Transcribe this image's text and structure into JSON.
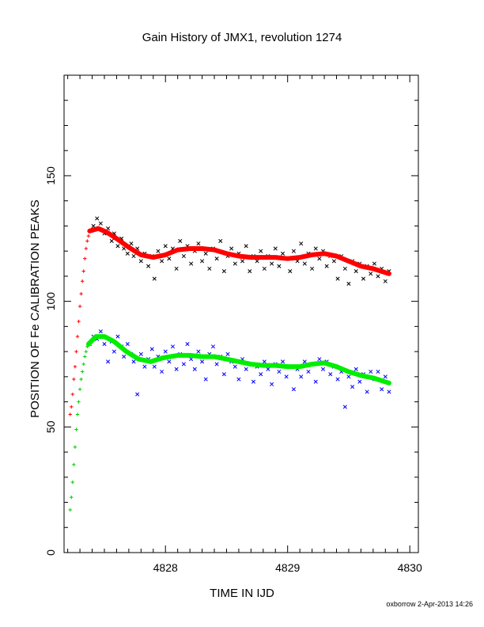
{
  "footer": "oxborrow  2-Apr-2013 14:26",
  "chart_data": {
    "type": "scatter",
    "title": "Gain History of JMX1, revolution 1274",
    "xlabel": "TIME IN IJD",
    "ylabel": "POSITION OF Fe CALIBRATION PEAKS",
    "xlim": [
      4827.17,
      4830.07
    ],
    "ylim": [
      0,
      190
    ],
    "x_ticks": [
      4828,
      4829,
      4830
    ],
    "x_tick_labels": [
      "4828",
      "4829",
      "4830"
    ],
    "y_ticks": [
      0,
      50,
      100,
      150
    ],
    "y_tick_labels": [
      "0",
      "50",
      "100",
      "150"
    ],
    "grid": false,
    "series": [
      {
        "style": "scatter-x",
        "color": "#000000",
        "points": [
          [
            4827.41,
            130
          ],
          [
            4827.44,
            133
          ],
          [
            4827.47,
            131
          ],
          [
            4827.5,
            127
          ],
          [
            4827.53,
            129
          ],
          [
            4827.56,
            124
          ],
          [
            4827.58,
            127
          ],
          [
            4827.61,
            122
          ],
          [
            4827.64,
            125
          ],
          [
            4827.66,
            121
          ],
          [
            4827.69,
            119
          ],
          [
            4827.72,
            123
          ],
          [
            4827.74,
            118
          ],
          [
            4827.77,
            121
          ],
          [
            4827.8,
            116
          ],
          [
            4827.83,
            119
          ],
          [
            4827.86,
            114
          ],
          [
            4827.89,
            118
          ],
          [
            4827.91,
            109
          ],
          [
            4827.94,
            120
          ],
          [
            4827.97,
            116
          ],
          [
            4828.0,
            122
          ],
          [
            4828.03,
            117
          ],
          [
            4828.06,
            121
          ],
          [
            4828.09,
            113
          ],
          [
            4828.12,
            124
          ],
          [
            4828.15,
            118
          ],
          [
            4828.18,
            122
          ],
          [
            4828.21,
            115
          ],
          [
            4828.24,
            120
          ],
          [
            4828.27,
            123
          ],
          [
            4828.3,
            116
          ],
          [
            4828.33,
            119
          ],
          [
            4828.36,
            113
          ],
          [
            4828.39,
            121
          ],
          [
            4828.42,
            117
          ],
          [
            4828.45,
            124
          ],
          [
            4828.48,
            112
          ],
          [
            4828.51,
            118
          ],
          [
            4828.54,
            121
          ],
          [
            4828.57,
            115
          ],
          [
            4828.6,
            119
          ],
          [
            4828.63,
            116
          ],
          [
            4828.66,
            122
          ],
          [
            4828.69,
            112
          ],
          [
            4828.72,
            118
          ],
          [
            4828.75,
            116
          ],
          [
            4828.78,
            120
          ],
          [
            4828.81,
            113
          ],
          [
            4828.84,
            118
          ],
          [
            4828.87,
            115
          ],
          [
            4828.9,
            121
          ],
          [
            4828.93,
            114
          ],
          [
            4828.96,
            119
          ],
          [
            4828.99,
            117
          ],
          [
            4829.02,
            112
          ],
          [
            4829.05,
            120
          ],
          [
            4829.08,
            116
          ],
          [
            4829.11,
            123
          ],
          [
            4829.14,
            115
          ],
          [
            4829.17,
            119
          ],
          [
            4829.2,
            113
          ],
          [
            4829.23,
            121
          ],
          [
            4829.26,
            117
          ],
          [
            4829.29,
            120
          ],
          [
            4829.32,
            114
          ],
          [
            4829.35,
            118
          ],
          [
            4829.38,
            116
          ],
          [
            4829.41,
            109
          ],
          [
            4829.44,
            118
          ],
          [
            4829.47,
            113
          ],
          [
            4829.5,
            107
          ],
          [
            4829.53,
            116
          ],
          [
            4829.56,
            112
          ],
          [
            4829.59,
            115
          ],
          [
            4829.62,
            109
          ],
          [
            4829.65,
            114
          ],
          [
            4829.68,
            111
          ],
          [
            4829.71,
            115
          ],
          [
            4829.74,
            110
          ],
          [
            4829.77,
            113
          ],
          [
            4829.8,
            108
          ],
          [
            4829.83,
            112
          ]
        ]
      },
      {
        "style": "scatter-x",
        "color": "#0000ff",
        "points": [
          [
            4827.38,
            83
          ],
          [
            4827.41,
            86
          ],
          [
            4827.44,
            85
          ],
          [
            4827.47,
            88
          ],
          [
            4827.5,
            83
          ],
          [
            4827.53,
            76
          ],
          [
            4827.56,
            84
          ],
          [
            4827.58,
            80
          ],
          [
            4827.61,
            86
          ],
          [
            4827.64,
            82
          ],
          [
            4827.66,
            78
          ],
          [
            4827.69,
            83
          ],
          [
            4827.72,
            79
          ],
          [
            4827.74,
            76
          ],
          [
            4827.77,
            63
          ],
          [
            4827.8,
            79
          ],
          [
            4827.83,
            74
          ],
          [
            4827.86,
            77
          ],
          [
            4827.89,
            81
          ],
          [
            4827.91,
            74
          ],
          [
            4827.94,
            78
          ],
          [
            4827.97,
            72
          ],
          [
            4828.0,
            80
          ],
          [
            4828.03,
            76
          ],
          [
            4828.06,
            82
          ],
          [
            4828.09,
            73
          ],
          [
            4828.12,
            79
          ],
          [
            4828.15,
            75
          ],
          [
            4828.18,
            83
          ],
          [
            4828.21,
            77
          ],
          [
            4828.24,
            73
          ],
          [
            4828.27,
            80
          ],
          [
            4828.3,
            76
          ],
          [
            4828.33,
            69
          ],
          [
            4828.36,
            79
          ],
          [
            4828.39,
            82
          ],
          [
            4828.42,
            75
          ],
          [
            4828.45,
            78
          ],
          [
            4828.48,
            71
          ],
          [
            4828.51,
            79
          ],
          [
            4828.54,
            76
          ],
          [
            4828.57,
            74
          ],
          [
            4828.6,
            69
          ],
          [
            4828.63,
            77
          ],
          [
            4828.66,
            73
          ],
          [
            4828.69,
            75
          ],
          [
            4828.72,
            68
          ],
          [
            4828.75,
            74
          ],
          [
            4828.78,
            71
          ],
          [
            4828.81,
            76
          ],
          [
            4828.84,
            73
          ],
          [
            4828.87,
            67
          ],
          [
            4828.9,
            75
          ],
          [
            4828.93,
            72
          ],
          [
            4828.96,
            76
          ],
          [
            4828.99,
            70
          ],
          [
            4829.02,
            74
          ],
          [
            4829.05,
            65
          ],
          [
            4829.08,
            73
          ],
          [
            4829.11,
            70
          ],
          [
            4829.14,
            76
          ],
          [
            4829.17,
            72
          ],
          [
            4829.2,
            75
          ],
          [
            4829.23,
            68
          ],
          [
            4829.26,
            77
          ],
          [
            4829.29,
            73
          ],
          [
            4829.32,
            76
          ],
          [
            4829.35,
            71
          ],
          [
            4829.38,
            74
          ],
          [
            4829.41,
            69
          ],
          [
            4829.44,
            72
          ],
          [
            4829.47,
            58
          ],
          [
            4829.5,
            70
          ],
          [
            4829.53,
            66
          ],
          [
            4829.56,
            73
          ],
          [
            4829.59,
            68
          ],
          [
            4829.62,
            71
          ],
          [
            4829.65,
            64
          ],
          [
            4829.68,
            72
          ],
          [
            4829.71,
            69
          ],
          [
            4829.74,
            72
          ],
          [
            4829.77,
            65
          ],
          [
            4829.8,
            70
          ],
          [
            4829.83,
            64
          ]
        ]
      },
      {
        "style": "plus",
        "color": "#ff0000",
        "points": [
          [
            4827.22,
            55
          ],
          [
            4827.23,
            58
          ],
          [
            4827.24,
            63
          ],
          [
            4827.25,
            69
          ],
          [
            4827.26,
            74
          ],
          [
            4827.27,
            80
          ],
          [
            4827.28,
            86
          ],
          [
            4827.29,
            92
          ],
          [
            4827.3,
            98
          ],
          [
            4827.31,
            103
          ],
          [
            4827.32,
            108
          ],
          [
            4827.33,
            112
          ],
          [
            4827.34,
            117
          ],
          [
            4827.35,
            121
          ],
          [
            4827.36,
            124
          ],
          [
            4827.37,
            126
          ],
          [
            4827.38,
            128
          ]
        ]
      },
      {
        "style": "plus",
        "color": "#00cc00",
        "points": [
          [
            4827.22,
            17
          ],
          [
            4827.23,
            22
          ],
          [
            4827.24,
            28
          ],
          [
            4827.25,
            35
          ],
          [
            4827.26,
            42
          ],
          [
            4827.27,
            49
          ],
          [
            4827.28,
            55
          ],
          [
            4827.29,
            60
          ],
          [
            4827.3,
            65
          ],
          [
            4827.31,
            69
          ],
          [
            4827.32,
            72
          ],
          [
            4827.33,
            75
          ],
          [
            4827.34,
            78
          ],
          [
            4827.35,
            80
          ],
          [
            4827.36,
            82
          ],
          [
            4827.37,
            83
          ]
        ]
      },
      {
        "style": "line",
        "color": "#ff0000",
        "points": [
          [
            4827.38,
            128
          ],
          [
            4827.45,
            129
          ],
          [
            4827.52,
            127.5
          ],
          [
            4827.6,
            125
          ],
          [
            4827.7,
            121.5
          ],
          [
            4827.8,
            118.5
          ],
          [
            4827.9,
            117.5
          ],
          [
            4828.0,
            118.5
          ],
          [
            4828.1,
            120.5
          ],
          [
            4828.2,
            121
          ],
          [
            4828.3,
            121
          ],
          [
            4828.4,
            120.5
          ],
          [
            4828.5,
            119
          ],
          [
            4828.6,
            118
          ],
          [
            4828.7,
            117.5
          ],
          [
            4828.8,
            117.5
          ],
          [
            4828.9,
            117.5
          ],
          [
            4829.0,
            117
          ],
          [
            4829.1,
            117.5
          ],
          [
            4829.2,
            118.5
          ],
          [
            4829.3,
            119
          ],
          [
            4829.4,
            118
          ],
          [
            4829.5,
            116
          ],
          [
            4829.6,
            114
          ],
          [
            4829.7,
            113
          ],
          [
            4829.83,
            111
          ]
        ]
      },
      {
        "style": "line",
        "color": "#00ee00",
        "points": [
          [
            4827.37,
            83
          ],
          [
            4827.43,
            86
          ],
          [
            4827.5,
            86
          ],
          [
            4827.58,
            84
          ],
          [
            4827.68,
            80
          ],
          [
            4827.78,
            77
          ],
          [
            4827.88,
            76
          ],
          [
            4827.98,
            77.5
          ],
          [
            4828.1,
            78.5
          ],
          [
            4828.2,
            78.5
          ],
          [
            4828.3,
            78
          ],
          [
            4828.4,
            78
          ],
          [
            4828.5,
            77
          ],
          [
            4828.6,
            76
          ],
          [
            4828.7,
            75
          ],
          [
            4828.8,
            74.5
          ],
          [
            4828.9,
            74.5
          ],
          [
            4829.0,
            74
          ],
          [
            4829.1,
            74
          ],
          [
            4829.2,
            75
          ],
          [
            4829.3,
            75.5
          ],
          [
            4829.4,
            74
          ],
          [
            4829.5,
            72
          ],
          [
            4829.6,
            70.5
          ],
          [
            4829.7,
            69.5
          ],
          [
            4829.83,
            67.5
          ]
        ]
      }
    ]
  }
}
